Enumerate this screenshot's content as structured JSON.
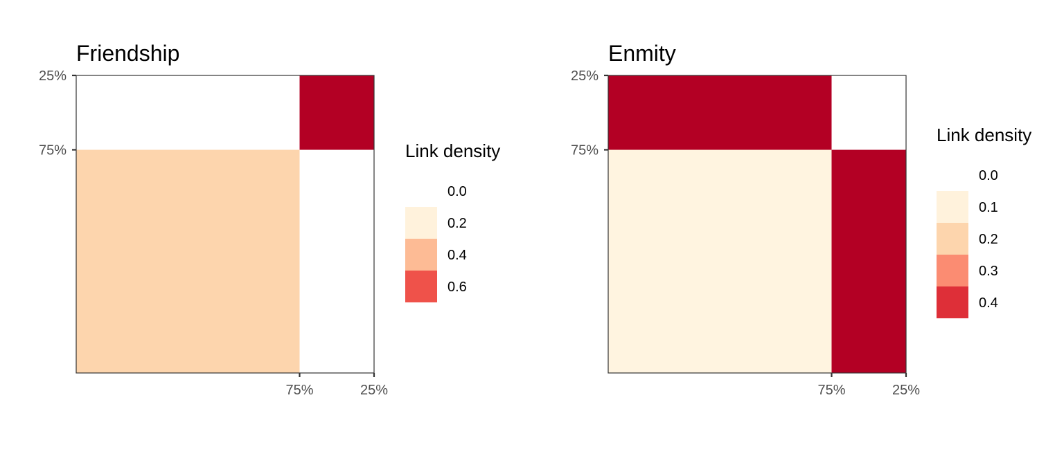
{
  "chart_data": [
    {
      "type": "heatmap",
      "title": "Friendship",
      "row_tick_labels": [
        "25%",
        "75%"
      ],
      "col_tick_labels": [
        "75%",
        "25%"
      ],
      "blocks": [
        {
          "row": 0,
          "col": 0,
          "value": 0.0,
          "color": "#ffffff"
        },
        {
          "row": 0,
          "col": 1,
          "value": 0.8,
          "color": "#b30024"
        },
        {
          "row": 1,
          "col": 0,
          "value": 0.25,
          "color": "#fdd5ad"
        },
        {
          "row": 1,
          "col": 1,
          "value": 0.0,
          "color": "#ffffff"
        }
      ],
      "legend": {
        "title": "Link density",
        "entries": [
          {
            "label": "0.0",
            "color": "#ffffff"
          },
          {
            "label": "0.2",
            "color": "#fff2dc"
          },
          {
            "label": "0.4",
            "color": "#fdbb95"
          },
          {
            "label": "0.6",
            "color": "#ef524a"
          }
        ]
      }
    },
    {
      "type": "heatmap",
      "title": "Enmity",
      "row_tick_labels": [
        "25%",
        "75%"
      ],
      "col_tick_labels": [
        "75%",
        "25%"
      ],
      "blocks": [
        {
          "row": 0,
          "col": 0,
          "value": 0.5,
          "color": "#b30024"
        },
        {
          "row": 0,
          "col": 1,
          "value": 0.0,
          "color": "#ffffff"
        },
        {
          "row": 1,
          "col": 0,
          "value": 0.1,
          "color": "#fff4e0"
        },
        {
          "row": 1,
          "col": 1,
          "value": 0.5,
          "color": "#b30024"
        }
      ],
      "legend": {
        "title": "Link density",
        "entries": [
          {
            "label": "0.0",
            "color": "#ffffff"
          },
          {
            "label": "0.1",
            "color": "#fff2dc"
          },
          {
            "label": "0.2",
            "color": "#fdd5ad"
          },
          {
            "label": "0.3",
            "color": "#fb8c72"
          },
          {
            "label": "0.4",
            "color": "#de2f38"
          }
        ]
      }
    }
  ]
}
